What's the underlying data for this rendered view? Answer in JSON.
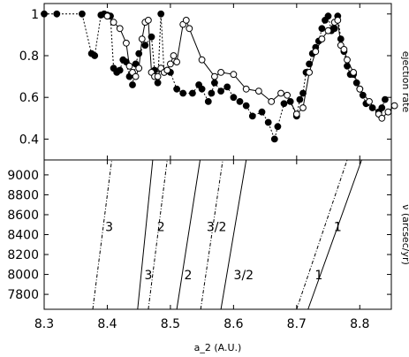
{
  "chart_data": [
    {
      "type": "line",
      "ylabel": "ejection rate",
      "xlim": [
        8.3,
        8.85
      ],
      "ylim": [
        0.3,
        1.05
      ],
      "yticks": [
        0.4,
        0.6,
        0.8,
        1.0
      ],
      "ytick_labels": [
        "0.4",
        "0.6",
        "0.8",
        "1"
      ],
      "series": [
        {
          "name": "",
          "style": "dotted-filled-circles",
          "points": [
            [
              8.3,
              1.0
            ],
            [
              8.32,
              1.0
            ],
            [
              8.36,
              1.0
            ],
            [
              8.375,
              0.81
            ],
            [
              8.38,
              0.8
            ],
            [
              8.39,
              0.995
            ],
            [
              8.395,
              1.0
            ],
            [
              8.4,
              0.995
            ],
            [
              8.405,
              0.99
            ],
            [
              8.41,
              0.74
            ],
            [
              8.415,
              0.72
            ],
            [
              8.42,
              0.73
            ],
            [
              8.425,
              0.78
            ],
            [
              8.43,
              0.77
            ],
            [
              8.435,
              0.7
            ],
            [
              8.44,
              0.66
            ],
            [
              8.445,
              0.76
            ],
            [
              8.45,
              0.81
            ],
            [
              8.46,
              0.85
            ],
            [
              8.47,
              0.89
            ],
            [
              8.475,
              0.73
            ],
            [
              8.48,
              0.67
            ],
            [
              8.485,
              1.0
            ],
            [
              8.49,
              0.72
            ],
            [
              8.495,
              0.73
            ],
            [
              8.5,
              0.72
            ],
            [
              8.51,
              0.64
            ],
            [
              8.52,
              0.62
            ],
            [
              8.535,
              0.62
            ],
            [
              8.545,
              0.66
            ],
            [
              8.55,
              0.64
            ],
            [
              8.56,
              0.58
            ],
            [
              8.565,
              0.62
            ],
            [
              8.57,
              0.67
            ],
            [
              8.58,
              0.63
            ],
            [
              8.59,
              0.65
            ],
            [
              8.6,
              0.6
            ],
            [
              8.61,
              0.58
            ],
            [
              8.62,
              0.56
            ],
            [
              8.63,
              0.51
            ],
            [
              8.645,
              0.53
            ],
            [
              8.655,
              0.48
            ],
            [
              8.665,
              0.4
            ],
            [
              8.67,
              0.46
            ],
            [
              8.68,
              0.57
            ],
            [
              8.69,
              0.58
            ],
            [
              8.7,
              0.51
            ],
            [
              8.705,
              0.59
            ],
            [
              8.71,
              0.62
            ],
            [
              8.715,
              0.72
            ],
            [
              8.72,
              0.76
            ],
            [
              8.725,
              0.81
            ],
            [
              8.73,
              0.84
            ],
            [
              8.735,
              0.87
            ],
            [
              8.74,
              0.93
            ],
            [
              8.745,
              0.97
            ],
            [
              8.75,
              0.99
            ],
            [
              8.755,
              0.92
            ],
            [
              8.76,
              0.93
            ],
            [
              8.765,
              0.99
            ],
            [
              8.77,
              0.88
            ],
            [
              8.775,
              0.82
            ],
            [
              8.78,
              0.75
            ],
            [
              8.785,
              0.71
            ],
            [
              8.79,
              0.71
            ],
            [
              8.795,
              0.67
            ],
            [
              8.8,
              0.64
            ],
            [
              8.805,
              0.61
            ],
            [
              8.81,
              0.57
            ],
            [
              8.82,
              0.55
            ],
            [
              8.83,
              0.53
            ],
            [
              8.835,
              0.55
            ],
            [
              8.84,
              0.59
            ]
          ]
        },
        {
          "name": "",
          "style": "solid-open-circles",
          "points": [
            [
              8.4,
              0.99
            ],
            [
              8.41,
              0.96
            ],
            [
              8.42,
              0.93
            ],
            [
              8.43,
              0.86
            ],
            [
              8.435,
              0.75
            ],
            [
              8.44,
              0.72
            ],
            [
              8.445,
              0.7
            ],
            [
              8.45,
              0.74
            ],
            [
              8.455,
              0.88
            ],
            [
              8.46,
              0.96
            ],
            [
              8.465,
              0.97
            ],
            [
              8.47,
              0.72
            ],
            [
              8.475,
              0.7
            ],
            [
              8.48,
              0.7
            ],
            [
              8.485,
              0.74
            ],
            [
              8.49,
              0.72
            ],
            [
              8.495,
              0.73
            ],
            [
              8.5,
              0.76
            ],
            [
              8.505,
              0.8
            ],
            [
              8.51,
              0.77
            ],
            [
              8.52,
              0.95
            ],
            [
              8.525,
              0.97
            ],
            [
              8.53,
              0.93
            ],
            [
              8.55,
              0.78
            ],
            [
              8.57,
              0.7
            ],
            [
              8.58,
              0.72
            ],
            [
              8.6,
              0.71
            ],
            [
              8.62,
              0.64
            ],
            [
              8.64,
              0.63
            ],
            [
              8.66,
              0.58
            ],
            [
              8.675,
              0.62
            ],
            [
              8.685,
              0.61
            ],
            [
              8.7,
              0.52
            ],
            [
              8.71,
              0.55
            ],
            [
              8.72,
              0.72
            ],
            [
              8.73,
              0.82
            ],
            [
              8.74,
              0.88
            ],
            [
              8.75,
              0.92
            ],
            [
              8.76,
              0.96
            ],
            [
              8.765,
              0.97
            ],
            [
              8.77,
              0.85
            ],
            [
              8.775,
              0.83
            ],
            [
              8.78,
              0.78
            ],
            [
              8.79,
              0.72
            ],
            [
              8.8,
              0.64
            ],
            [
              8.815,
              0.58
            ],
            [
              8.83,
              0.52
            ],
            [
              8.835,
              0.5
            ],
            [
              8.845,
              0.53
            ],
            [
              8.855,
              0.56
            ]
          ]
        }
      ]
    },
    {
      "type": "line",
      "xlabel": "a_2 (A.U.)",
      "ylabel": "ν (arcsec/yr)",
      "xlim": [
        8.3,
        8.85
      ],
      "ylim": [
        7650,
        9150
      ],
      "xticks": [
        8.3,
        8.4,
        8.5,
        8.6,
        8.7,
        8.8
      ],
      "xtick_labels": [
        "8.3",
        "8.4",
        "8.5",
        "8.6",
        "8.7",
        "8.8"
      ],
      "yticks": [
        7800,
        8000,
        8200,
        8400,
        8600,
        8800,
        9000
      ],
      "ytick_labels": [
        "7800",
        "8000",
        "8200",
        "8400",
        "8600",
        "8800",
        "9000"
      ],
      "lines": [
        {
          "style": "dashdot",
          "points": [
            [
              8.377,
              7650
            ],
            [
              8.407,
              9150
            ]
          ]
        },
        {
          "style": "solid",
          "points": [
            [
              8.448,
              7650
            ],
            [
              8.472,
              9150
            ]
          ]
        },
        {
          "style": "dashdot",
          "points": [
            [
              8.465,
              7650
            ],
            [
              8.495,
              9150
            ]
          ]
        },
        {
          "style": "solid",
          "points": [
            [
              8.51,
              7650
            ],
            [
              8.547,
              9150
            ]
          ]
        },
        {
          "style": "dashdot",
          "points": [
            [
              8.548,
              7650
            ],
            [
              8.583,
              9150
            ]
          ]
        },
        {
          "style": "solid",
          "points": [
            [
              8.58,
              7650
            ],
            [
              8.62,
              9150
            ]
          ]
        },
        {
          "style": "dashdot",
          "points": [
            [
              8.7,
              7650
            ],
            [
              8.78,
              9150
            ]
          ]
        },
        {
          "style": "solid",
          "points": [
            [
              8.718,
              7650
            ],
            [
              8.803,
              9150
            ]
          ]
        }
      ],
      "annotations": [
        {
          "text": "3",
          "x": 8.403,
          "y": 8480
        },
        {
          "text": "2",
          "x": 8.485,
          "y": 8480
        },
        {
          "text": "3/2",
          "x": 8.573,
          "y": 8480
        },
        {
          "text": "1",
          "x": 8.765,
          "y": 8480
        },
        {
          "text": "3",
          "x": 8.465,
          "y": 7995
        },
        {
          "text": "2",
          "x": 8.528,
          "y": 7995
        },
        {
          "text": "3/2",
          "x": 8.616,
          "y": 7995
        },
        {
          "text": "1",
          "x": 8.735,
          "y": 7995
        }
      ]
    }
  ]
}
